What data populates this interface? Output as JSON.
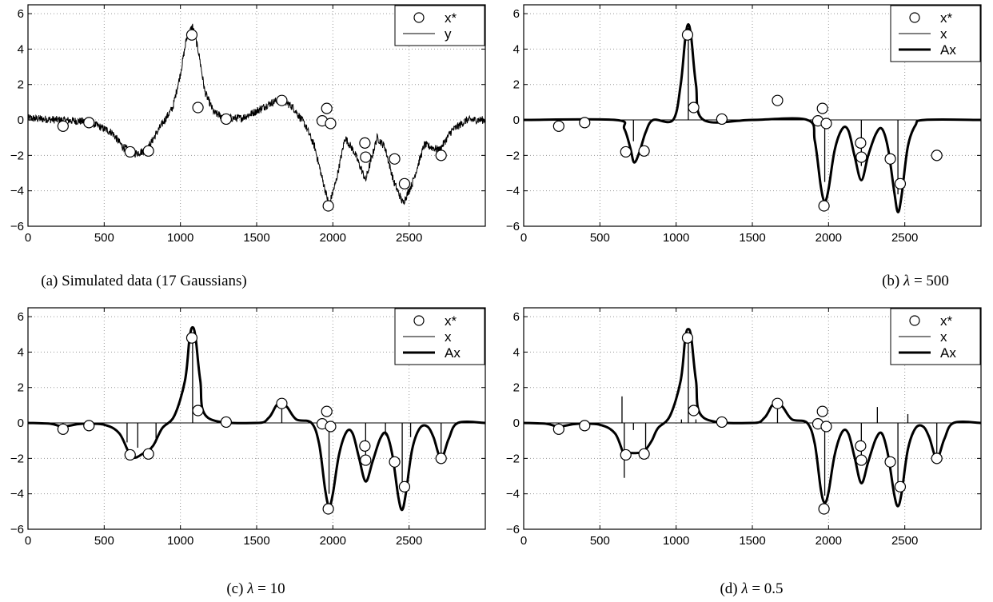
{
  "chart_data": [
    {
      "id": "a",
      "type": "line",
      "caption": "(a) Simulated data (17 Gaussians)",
      "xlim": [
        0,
        3000
      ],
      "ylim": [
        -6,
        6.5
      ],
      "xticks": [
        0,
        500,
        1000,
        1500,
        2000,
        2500
      ],
      "yticks": [
        -6,
        -4,
        -2,
        0,
        2,
        4,
        6
      ],
      "grid": true,
      "legend": {
        "position": "top-right",
        "entries": [
          {
            "label": "x*",
            "marker": "circle"
          },
          {
            "label": "y",
            "marker": "thin-line"
          }
        ]
      },
      "truth_points": {
        "x": [
          230,
          400,
          670,
          790,
          1075,
          1115,
          1300,
          1665,
          1930,
          1960,
          1985,
          1970,
          2210,
          2215,
          2405,
          2470,
          2710
        ],
        "y": [
          -0.35,
          -0.15,
          -1.8,
          -1.75,
          4.8,
          0.7,
          0.05,
          1.1,
          -0.05,
          0.65,
          -0.2,
          -4.85,
          -1.3,
          -2.1,
          -2.2,
          -3.6,
          -2.0
        ]
      },
      "signal_curve": {
        "x": [
          0,
          200,
          400,
          550,
          620,
          700,
          780,
          860,
          950,
          1000,
          1040,
          1080,
          1120,
          1160,
          1220,
          1300,
          1400,
          1500,
          1580,
          1660,
          1740,
          1820,
          1880,
          1930,
          1975,
          2020,
          2080,
          2140,
          2215,
          2290,
          2340,
          2400,
          2460,
          2520,
          2600,
          2700,
          2780,
          2880,
          3000
        ],
        "y": [
          0.1,
          0.0,
          -0.1,
          -0.7,
          -1.5,
          -1.9,
          -1.7,
          -0.5,
          0.7,
          2.6,
          4.6,
          5.3,
          3.8,
          1.6,
          0.4,
          0.1,
          0.1,
          0.5,
          0.9,
          1.2,
          0.7,
          -0.3,
          -1.5,
          -3.3,
          -4.8,
          -3.5,
          -1.0,
          -1.8,
          -3.4,
          -1.0,
          -1.5,
          -3.5,
          -4.7,
          -3.6,
          -1.4,
          -1.7,
          -0.6,
          0.0,
          0.0
        ]
      },
      "noise_amplitude": 0.22
    },
    {
      "id": "b",
      "type": "line",
      "caption": "(b) λ = 500",
      "xlim": [
        0,
        3000
      ],
      "ylim": [
        -6,
        6.5
      ],
      "xticks": [
        0,
        500,
        1000,
        1500,
        2000,
        2500
      ],
      "yticks": [
        -6,
        -4,
        -2,
        0,
        2,
        4,
        6
      ],
      "grid": true,
      "legend": {
        "position": "top-right",
        "entries": [
          {
            "label": "x*",
            "marker": "circle"
          },
          {
            "label": "x",
            "marker": "thin-line"
          },
          {
            "label": "Ax",
            "marker": "thick-line"
          }
        ]
      },
      "truth_points": {
        "x": [
          230,
          400,
          670,
          790,
          1075,
          1115,
          1300,
          1665,
          1930,
          1960,
          1985,
          1970,
          2210,
          2215,
          2405,
          2470,
          2710
        ],
        "y": [
          -0.35,
          -0.15,
          -1.8,
          -1.75,
          4.8,
          0.7,
          0.05,
          1.1,
          -0.05,
          0.65,
          -0.2,
          -4.85,
          -1.3,
          -2.1,
          -2.2,
          -3.6,
          -2.0
        ]
      },
      "spikes": {
        "x": [
          720,
          1080,
          1975,
          2215,
          2455
        ],
        "y": [
          -1.2,
          5.2,
          -3.5,
          -2.6,
          -4.2
        ]
      },
      "fit_curve": {
        "x": [
          0,
          600,
          660,
          700,
          725,
          760,
          800,
          850,
          980,
          1030,
          1060,
          1080,
          1100,
          1130,
          1180,
          1500,
          1860,
          1910,
          1950,
          1975,
          2000,
          2040,
          2090,
          2130,
          2170,
          2215,
          2260,
          2310,
          2350,
          2390,
          2430,
          2455,
          2480,
          2520,
          2570,
          2630,
          3000
        ],
        "y": [
          0,
          0,
          -0.5,
          -1.6,
          -2.4,
          -1.8,
          -0.7,
          0,
          0,
          2.0,
          4.6,
          5.4,
          4.6,
          2.0,
          0,
          0,
          0,
          -1.2,
          -3.8,
          -4.6,
          -3.9,
          -1.7,
          -0.5,
          -0.6,
          -2.0,
          -3.4,
          -2.0,
          -0.8,
          -0.5,
          -1.6,
          -4.0,
          -5.2,
          -4.2,
          -1.5,
          -0.3,
          0,
          0
        ]
      }
    },
    {
      "id": "c",
      "type": "line",
      "caption": "(c) λ = 10",
      "xlim": [
        0,
        3000
      ],
      "ylim": [
        -6,
        6.5
      ],
      "xticks": [
        0,
        500,
        1000,
        1500,
        2000,
        2500
      ],
      "yticks": [
        -6,
        -4,
        -2,
        0,
        2,
        4,
        6
      ],
      "grid": true,
      "legend": {
        "position": "top-right",
        "entries": [
          {
            "label": "x*",
            "marker": "circle"
          },
          {
            "label": "x",
            "marker": "thin-line"
          },
          {
            "label": "Ax",
            "marker": "thick-line"
          }
        ]
      },
      "truth_points": {
        "x": [
          230,
          400,
          670,
          790,
          1075,
          1115,
          1300,
          1665,
          1930,
          1960,
          1985,
          1970,
          2210,
          2215,
          2405,
          2470,
          2710
        ],
        "y": [
          -0.35,
          -0.15,
          -1.8,
          -1.75,
          4.8,
          0.7,
          0.05,
          1.1,
          -0.05,
          0.65,
          -0.2,
          -4.85,
          -1.3,
          -2.1,
          -2.2,
          -3.6,
          -2.0
        ]
      },
      "spikes": {
        "x": [
          230,
          650,
          720,
          840,
          1080,
          1665,
          1975,
          2215,
          2345,
          2455,
          2510,
          2710
        ],
        "y": [
          -0.3,
          -1.1,
          -1.4,
          -1.1,
          4.9,
          1.0,
          -4.0,
          -2.3,
          -0.7,
          -3.8,
          -0.8,
          -1.9
        ]
      },
      "fit_curve": {
        "x": [
          0,
          150,
          230,
          350,
          500,
          600,
          680,
          760,
          820,
          880,
          960,
          1030,
          1060,
          1080,
          1100,
          1130,
          1180,
          1500,
          1580,
          1630,
          1665,
          1700,
          1760,
          1860,
          1910,
          1950,
          1975,
          2000,
          2040,
          2090,
          2130,
          2170,
          2215,
          2260,
          2310,
          2350,
          2390,
          2430,
          2455,
          2480,
          2520,
          2570,
          2620,
          2660,
          2710,
          2760,
          2820,
          3000
        ],
        "y": [
          0,
          -0.05,
          -0.2,
          -0.05,
          -0.1,
          -0.6,
          -1.9,
          -1.7,
          -1.3,
          -0.3,
          0.4,
          2.4,
          4.8,
          5.4,
          4.8,
          2.4,
          0.3,
          0,
          0.3,
          1.0,
          1.1,
          0.9,
          0.2,
          0,
          -1.2,
          -3.8,
          -4.7,
          -4.0,
          -1.8,
          -0.5,
          -0.6,
          -1.9,
          -3.3,
          -2.2,
          -0.9,
          -0.6,
          -1.8,
          -4.2,
          -4.9,
          -3.9,
          -1.5,
          -0.3,
          -0.2,
          -0.8,
          -2.0,
          -0.9,
          0,
          0
        ]
      }
    },
    {
      "id": "d",
      "type": "line",
      "caption": "(d) λ = 0.5",
      "xlim": [
        0,
        3000
      ],
      "ylim": [
        -6,
        6.5
      ],
      "xticks": [
        0,
        500,
        1000,
        1500,
        2000,
        2500
      ],
      "yticks": [
        -6,
        -4,
        -2,
        0,
        2,
        4,
        6
      ],
      "grid": true,
      "legend": {
        "position": "top-right",
        "entries": [
          {
            "label": "x*",
            "marker": "circle"
          },
          {
            "label": "x",
            "marker": "thin-line"
          },
          {
            "label": "Ax",
            "marker": "thick-line"
          }
        ]
      },
      "truth_points": {
        "x": [
          230,
          400,
          670,
          790,
          1075,
          1115,
          1300,
          1665,
          1930,
          1960,
          1985,
          1970,
          2210,
          2215,
          2405,
          2470,
          2710
        ],
        "y": [
          -0.35,
          -0.15,
          -1.8,
          -1.75,
          4.8,
          0.7,
          0.05,
          1.1,
          -0.05,
          0.65,
          -0.2,
          -4.85,
          -1.3,
          -2.1,
          -2.2,
          -3.6,
          -2.0
        ]
      },
      "spikes": {
        "x": [
          230,
          645,
          660,
          720,
          800,
          1035,
          1080,
          1130,
          1665,
          1975,
          2215,
          2320,
          2455,
          2520,
          2710
        ],
        "y": [
          -0.3,
          1.5,
          -3.1,
          -0.4,
          -1.5,
          0.2,
          5.0,
          0.2,
          1.0,
          -4.1,
          -2.2,
          0.9,
          -3.8,
          0.5,
          -1.9
        ]
      },
      "fit_curve": {
        "x": [
          0,
          150,
          230,
          350,
          500,
          600,
          660,
          700,
          740,
          790,
          840,
          880,
          960,
          1030,
          1060,
          1080,
          1100,
          1130,
          1180,
          1500,
          1580,
          1630,
          1665,
          1700,
          1760,
          1860,
          1910,
          1950,
          1975,
          2000,
          2040,
          2090,
          2130,
          2170,
          2215,
          2260,
          2310,
          2350,
          2390,
          2430,
          2455,
          2480,
          2520,
          2570,
          2620,
          2660,
          2710,
          2760,
          2820,
          3000
        ],
        "y": [
          0,
          -0.05,
          -0.2,
          -0.05,
          -0.1,
          -0.6,
          -1.8,
          -1.7,
          -1.7,
          -1.6,
          -1.0,
          -0.3,
          0.4,
          2.4,
          4.8,
          5.3,
          4.8,
          2.4,
          0.3,
          0,
          0.3,
          1.0,
          1.1,
          0.9,
          0.2,
          0,
          -1.2,
          -3.8,
          -4.5,
          -3.9,
          -1.8,
          -0.5,
          -0.6,
          -1.9,
          -3.4,
          -2.2,
          -0.9,
          -0.6,
          -1.8,
          -4.0,
          -4.7,
          -3.9,
          -1.5,
          -0.3,
          -0.2,
          -0.8,
          -2.0,
          -0.9,
          0,
          0
        ]
      }
    }
  ]
}
